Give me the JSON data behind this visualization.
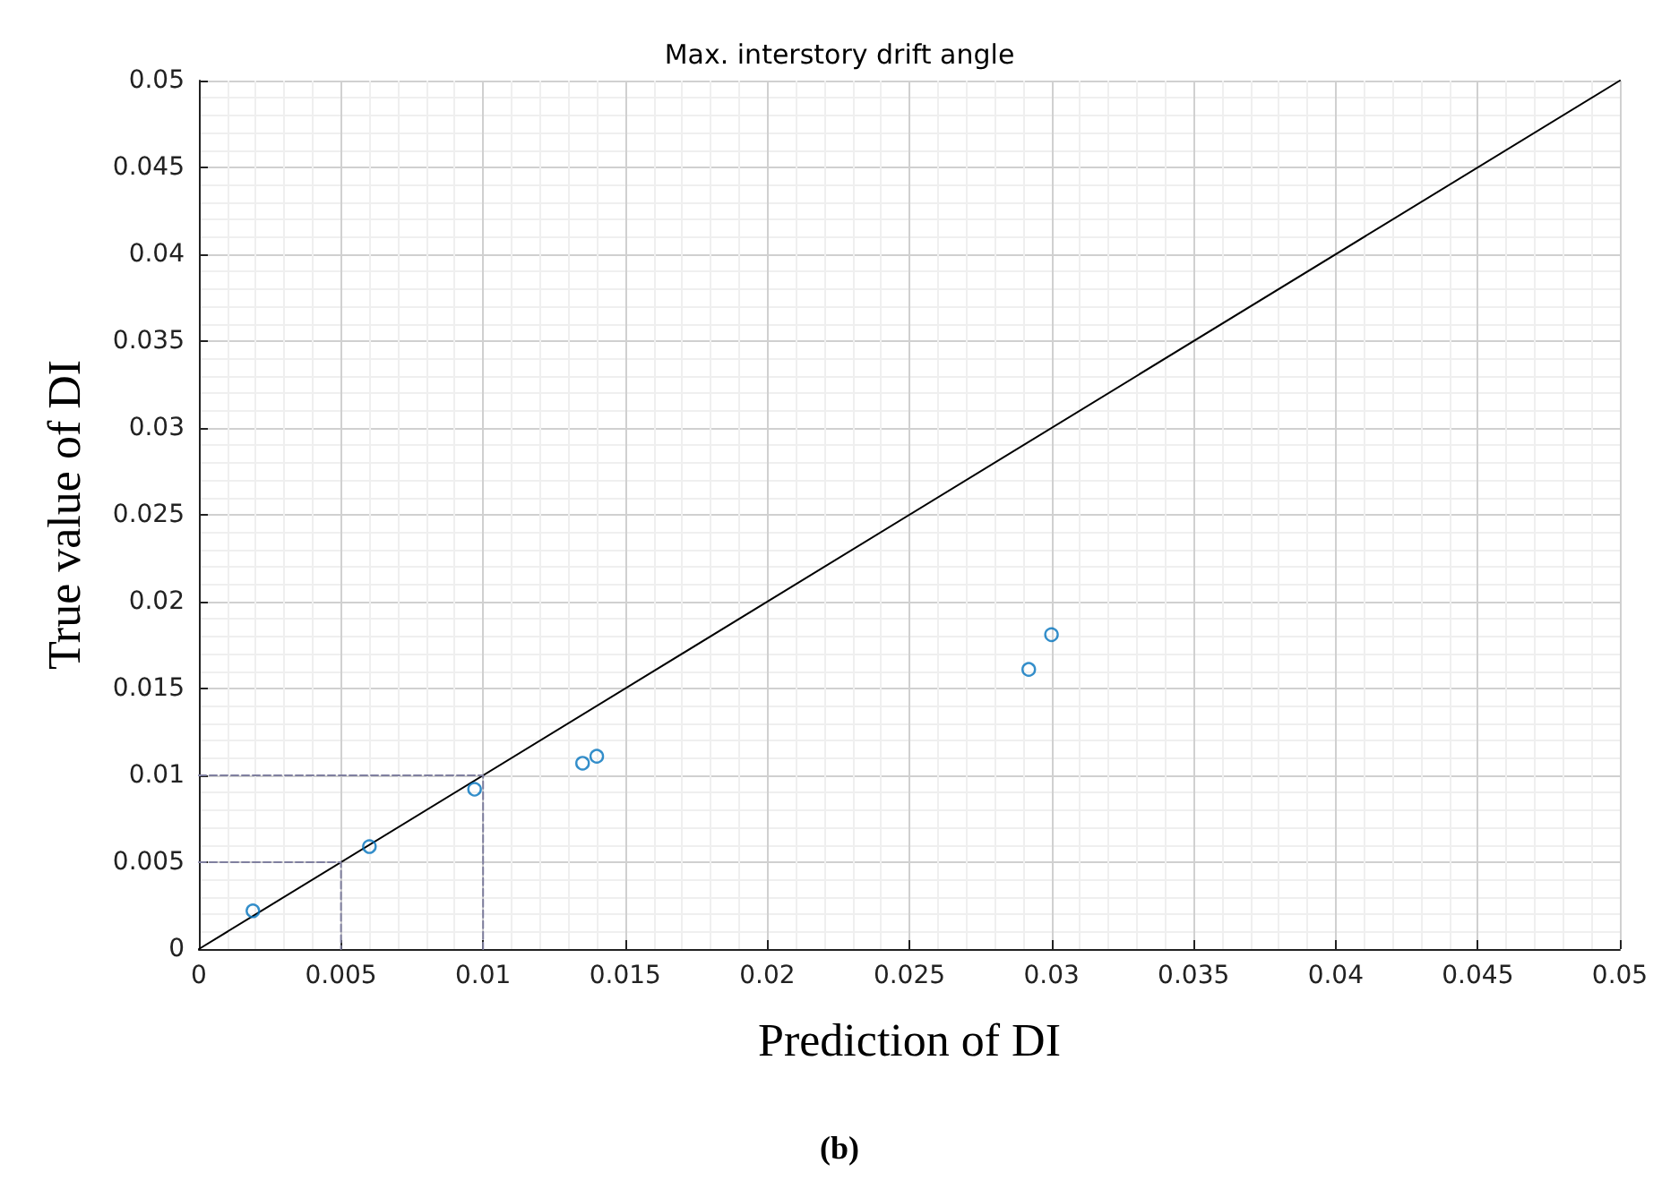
{
  "chart_data": {
    "type": "scatter",
    "title": "Max. interstory drift angle",
    "xlabel": "Prediction of DI",
    "ylabel": "True value of DI",
    "annotations": [
      "(b)"
    ],
    "series": [
      {
        "type": "line",
        "marker": "none",
        "color": "#000000",
        "x": [
          0,
          0.05
        ],
        "values": [
          0,
          0.05
        ]
      },
      {
        "type": "line",
        "marker": "none",
        "color": "#7f7f9f",
        "line_style": "dashed",
        "x": [
          0,
          0.005,
          0.005
        ],
        "values": [
          0.005,
          0.005,
          0
        ]
      },
      {
        "type": "line",
        "marker": "none",
        "color": "#7f7f9f",
        "line_style": "dashed",
        "x": [
          0,
          0.01,
          0.01
        ],
        "values": [
          0.01,
          0.01,
          0
        ]
      },
      {
        "color": "#0072bd",
        "x": [
          0.0019,
          0.006,
          0.0097,
          0.0135,
          0.014,
          0.0292,
          0.03
        ],
        "values": [
          0.0022,
          0.0059,
          0.0092,
          0.0107,
          0.0111,
          0.0161,
          0.0181
        ]
      }
    ],
    "xlim": [
      0,
      0.05
    ],
    "ylim": [
      0,
      0.05
    ],
    "xticks": [
      0,
      0.005,
      0.01,
      0.015,
      0.02,
      0.025,
      0.03,
      0.035,
      0.04,
      0.045,
      0.05
    ],
    "yticks": [
      0,
      0.005,
      0.01,
      0.015,
      0.02,
      0.025,
      0.03,
      0.035,
      0.04,
      0.045,
      0.05
    ],
    "grid": true,
    "marker": "circle"
  }
}
